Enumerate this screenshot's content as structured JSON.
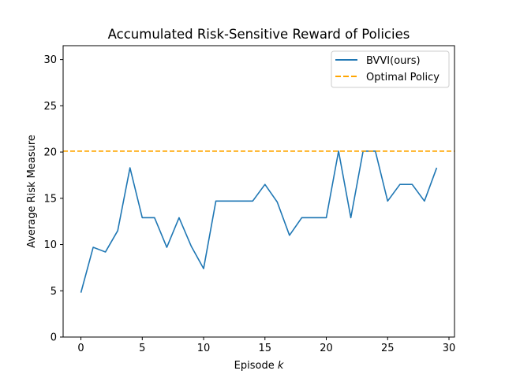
{
  "chart_data": {
    "type": "line",
    "title": "Accumulated Risk-Sensitive Reward of Policies",
    "xlabel_main": "Episode ",
    "xlabel_var": "k",
    "ylabel": "Average Risk Measure",
    "xlim": [
      -1.45,
      30.45
    ],
    "ylim": [
      0,
      31.5
    ],
    "xticks": [
      0,
      5,
      10,
      15,
      20,
      25,
      30
    ],
    "yticks": [
      0,
      5,
      10,
      15,
      20,
      25,
      30
    ],
    "grid": false,
    "legend_position": "top-right",
    "series": [
      {
        "name": "BVVI(ours)",
        "color": "#1f77b4",
        "style": "solid",
        "x": [
          0,
          1,
          2,
          3,
          4,
          5,
          6,
          7,
          8,
          9,
          10,
          11,
          12,
          13,
          14,
          15,
          16,
          17,
          18,
          19,
          20,
          21,
          22,
          23,
          24,
          25,
          26,
          27,
          28,
          29
        ],
        "y": [
          4.8,
          9.7,
          9.2,
          11.5,
          18.3,
          12.9,
          12.9,
          9.7,
          12.9,
          9.8,
          7.4,
          14.7,
          14.7,
          14.7,
          14.7,
          16.5,
          14.6,
          11.0,
          12.9,
          12.9,
          12.9,
          20.1,
          12.9,
          20.1,
          20.1,
          14.7,
          16.5,
          16.5,
          14.7,
          18.3
        ]
      },
      {
        "name": "Optimal Policy",
        "color": "#ffa500",
        "style": "dashed",
        "hline": 20.1
      }
    ]
  }
}
